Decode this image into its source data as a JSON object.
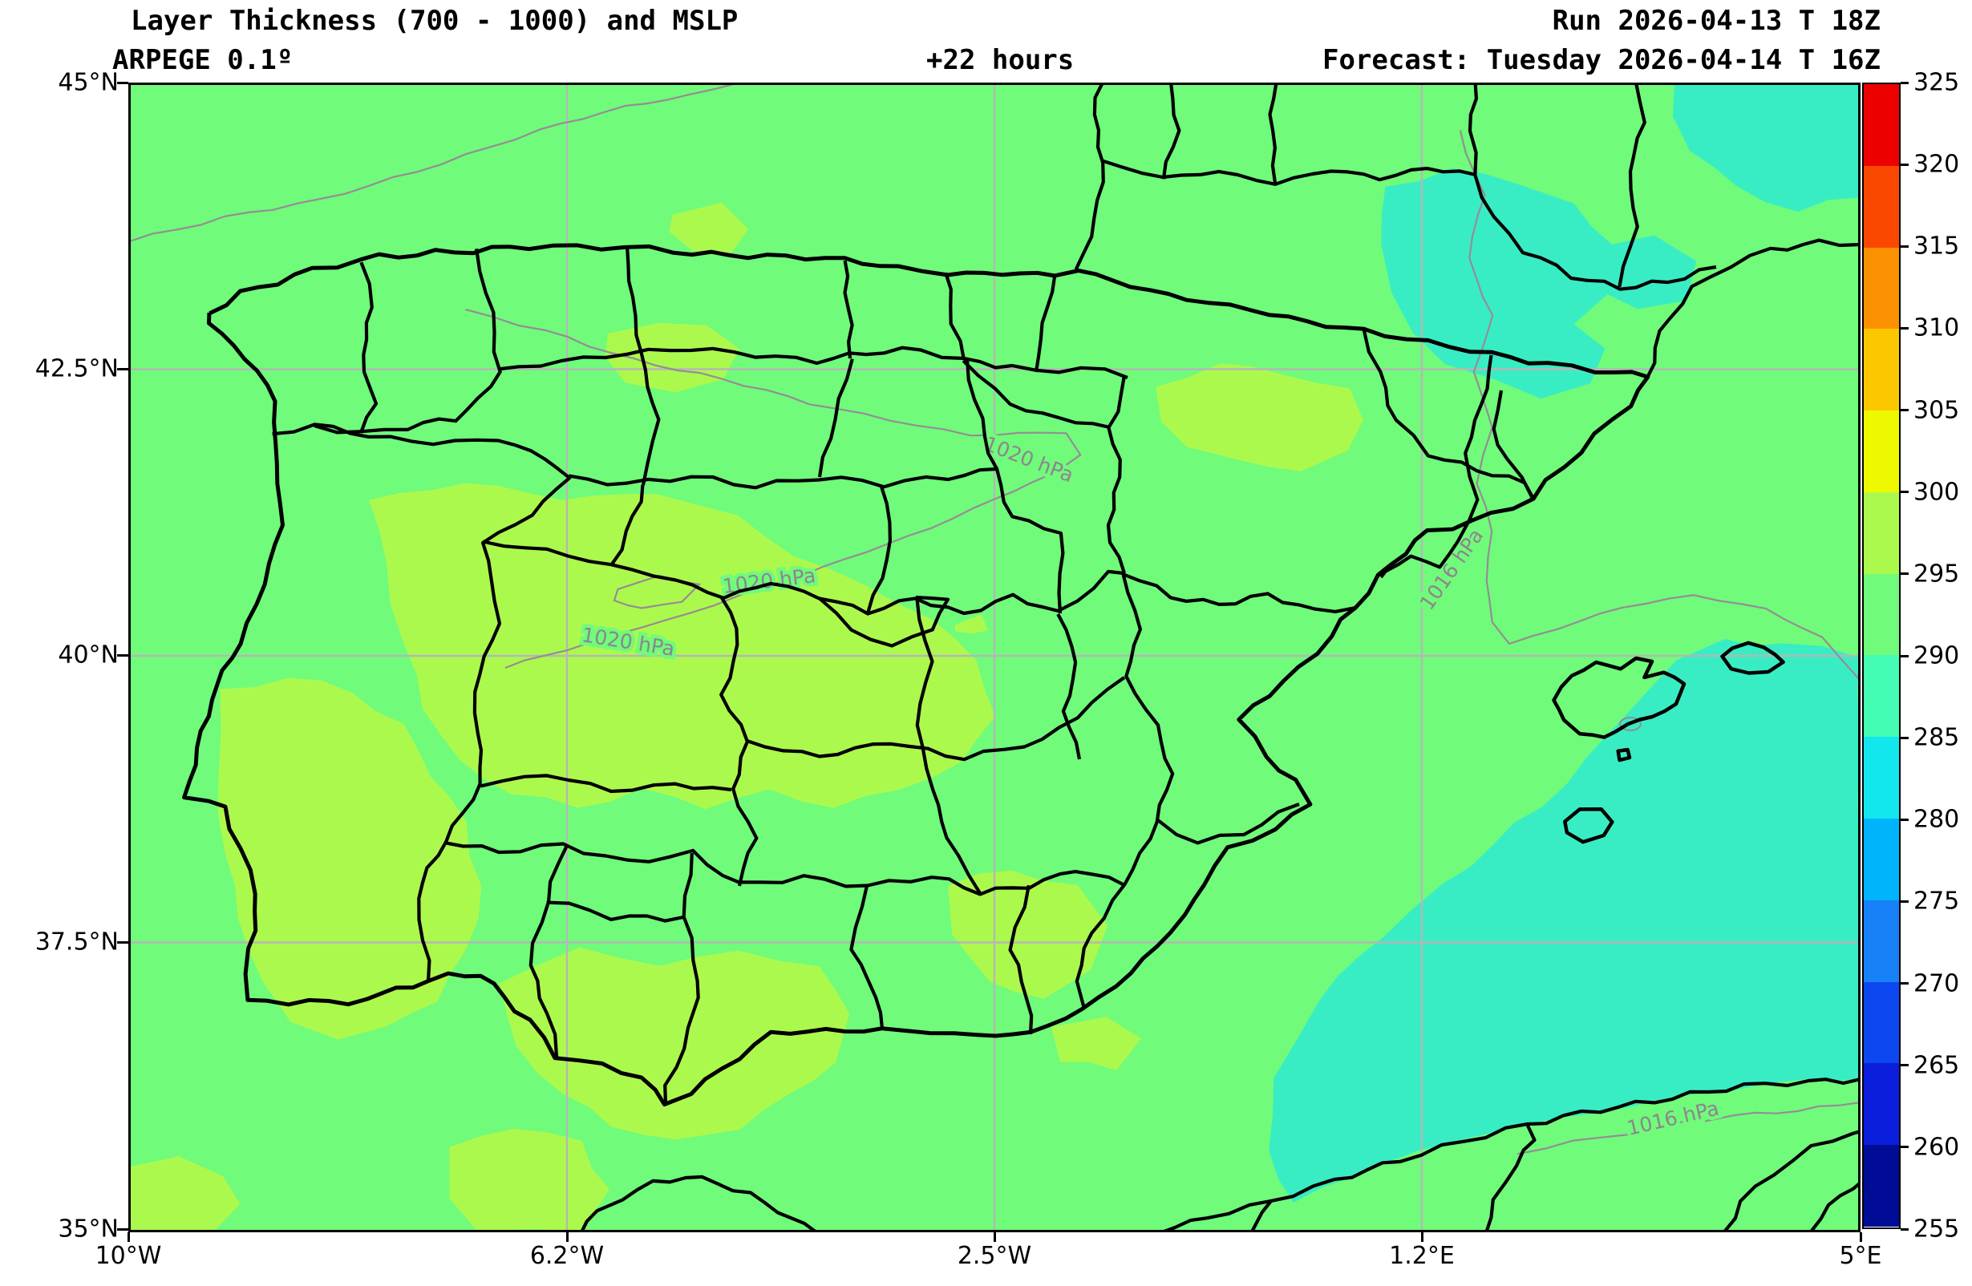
{
  "header": {
    "title": "Layer Thickness (700 - 1000) and MSLP",
    "model": "ARPEGE 0.1º",
    "forecast_hour": "+22 hours",
    "run": "Run 2026-04-13 T 18Z",
    "valid": "Forecast: Tuesday 2026-04-14 T 16Z"
  },
  "axes": {
    "x_ticks": [
      "10°W",
      "6.2°W",
      "2.5°W",
      "1.2°E",
      "5°E"
    ],
    "y_ticks": [
      "45°N",
      "42.5°N",
      "40°N",
      "37.5°N",
      "35°N"
    ]
  },
  "colorbar": {
    "tick_labels": [
      "255",
      "260",
      "265",
      "270",
      "275",
      "280",
      "285",
      "290",
      "295",
      "300",
      "305",
      "310",
      "315",
      "320",
      "325"
    ],
    "levels": [
      {
        "from": 255,
        "to": 260,
        "color": "#000C96"
      },
      {
        "from": 260,
        "to": 265,
        "color": "#0A1EDB"
      },
      {
        "from": 265,
        "to": 270,
        "color": "#0C47EF"
      },
      {
        "from": 270,
        "to": 275,
        "color": "#1881F8"
      },
      {
        "from": 275,
        "to": 280,
        "color": "#00B4FC"
      },
      {
        "from": 280,
        "to": 285,
        "color": "#12E7EE"
      },
      {
        "from": 285,
        "to": 290,
        "color": "#43FDB4"
      },
      {
        "from": 290,
        "to": 295,
        "color": "#70FB7A"
      },
      {
        "from": 295,
        "to": 300,
        "color": "#ACF94D"
      },
      {
        "from": 300,
        "to": 305,
        "color": "#EEF900"
      },
      {
        "from": 305,
        "to": 310,
        "color": "#FBC800"
      },
      {
        "from": 310,
        "to": 315,
        "color": "#FB9100"
      },
      {
        "from": 315,
        "to": 320,
        "color": "#FA4800"
      },
      {
        "from": 320,
        "to": 325,
        "color": "#EC0000"
      }
    ]
  },
  "map_colors": {
    "background": "#70FB7A",
    "band_295_300": "#ACF94D",
    "band_285_290": "#38EDC4",
    "borders": "#000000",
    "grid": "#B6B6B6",
    "contour": "#958D95",
    "contour_label": "#8D8590"
  },
  "contour_labels": [
    {
      "text": "1020 hPa"
    },
    {
      "text": "1020 hPa"
    },
    {
      "text": "1020 hPa"
    },
    {
      "text": "1016 hPa"
    },
    {
      "text": "1016 hPa"
    }
  ],
  "chart_data": {
    "type": "filled_contour_map",
    "title": "Layer Thickness (700 - 1000) and MSLP",
    "model": "ARPEGE 0.1º",
    "model_run": "Run 2026-04-13 T 18Z",
    "forecast_valid": "Forecast: Tuesday 2026-04-14 T 16Z",
    "lead_time": "+22 hours",
    "x_axis": {
      "ticks": [
        "10°W",
        "6.2°W",
        "2.5°W",
        "1.2°E",
        "5°E"
      ],
      "range": [
        "10°W",
        "5°E"
      ]
    },
    "y_axis": {
      "ticks": [
        "35°N",
        "37.5°N",
        "40°N",
        "42.5°N",
        "45°N"
      ],
      "range": [
        "35°N",
        "45°N"
      ]
    },
    "colorbar_ticks": [
      255,
      260,
      265,
      270,
      275,
      280,
      285,
      290,
      295,
      300,
      305,
      310,
      315,
      320,
      325
    ],
    "mslp_contours_hpa": [
      1016,
      1020
    ],
    "field_regions": [
      {
        "area": "most of Iberia, Atlantic and near seas",
        "thickness_band": "290-295"
      },
      {
        "area": "central and southwestern Iberia, Andalusia, Alentejo",
        "thickness_band": "295-300"
      },
      {
        "area": "northeast Spain south of the Pyrenees and far NE corner",
        "thickness_band": "285-290"
      },
      {
        "area": "Mediterranean south-east of the Balearic Islands",
        "thickness_band": "285-290"
      },
      {
        "area": "sea strip north of the Algerian coast",
        "thickness_band": "285-290"
      }
    ]
  }
}
